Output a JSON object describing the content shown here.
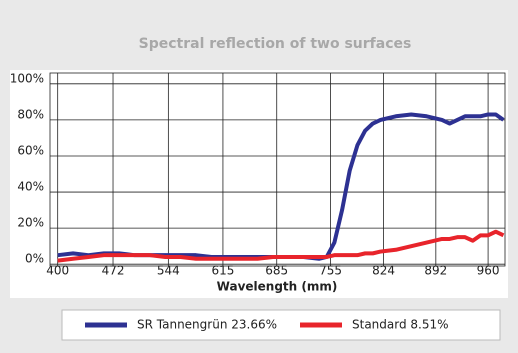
{
  "chart_data": {
    "type": "line",
    "title": "Spectral reflection of two surfaces",
    "x_label": "Wavelength (mm)",
    "x": [
      400,
      420,
      440,
      460,
      480,
      500,
      520,
      540,
      560,
      580,
      600,
      620,
      640,
      660,
      680,
      700,
      720,
      740,
      750,
      760,
      770,
      780,
      790,
      800,
      810,
      820,
      840,
      860,
      880,
      900,
      910,
      920,
      930,
      940,
      950,
      960,
      970,
      980
    ],
    "series": [
      {
        "name": "SR Tannengrün 23.66%",
        "color": "#2d3192",
        "values": [
          5,
          6,
          5,
          6,
          6,
          5,
          5,
          5,
          5,
          5,
          4,
          4,
          4,
          4,
          4,
          4,
          4,
          3,
          4,
          12,
          30,
          52,
          66,
          74,
          78,
          80,
          82,
          83,
          82,
          80,
          78,
          80,
          82,
          82,
          82,
          83,
          83,
          80
        ]
      },
      {
        "name": "Standard 8.51%",
        "color": "#e8242b",
        "values": [
          2,
          3,
          4,
          5,
          5,
          5,
          5,
          4,
          4,
          3,
          3,
          3,
          3,
          3,
          4,
          4,
          4,
          4,
          4,
          5,
          5,
          5,
          5,
          6,
          6,
          7,
          8,
          10,
          12,
          14,
          14,
          15,
          15,
          13,
          16,
          16,
          18,
          16
        ]
      }
    ],
    "xlim": [
      390,
      982
    ],
    "ylim": [
      -1,
      106
    ],
    "xticks": [
      400,
      472,
      544,
      615,
      685,
      755,
      824,
      892,
      960
    ],
    "yticks": [
      {
        "value": 0,
        "label": "0%"
      },
      {
        "value": 20,
        "label": "20%"
      },
      {
        "value": 40,
        "label": "40%"
      },
      {
        "value": 60,
        "label": "60%"
      },
      {
        "value": 80,
        "label": "80%"
      },
      {
        "value": 100,
        "label": "100%"
      }
    ],
    "grid": true,
    "legend": "bottom"
  }
}
